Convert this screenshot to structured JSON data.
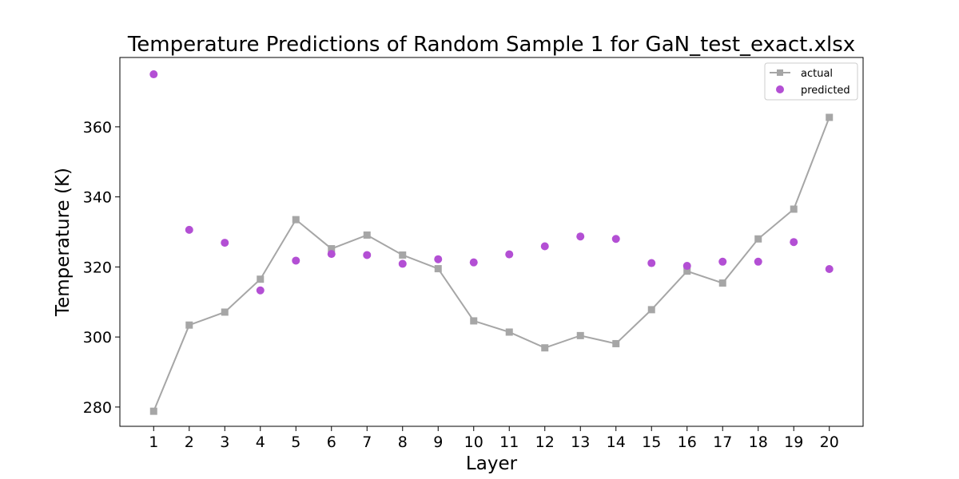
{
  "chart_data": {
    "type": "line",
    "title": "Temperature Predictions of Random Sample 1 for GaN_test_exact.xlsx",
    "xlabel": "Layer",
    "ylabel": "Temperature (K)",
    "x": [
      1,
      2,
      3,
      4,
      5,
      6,
      7,
      8,
      9,
      10,
      11,
      12,
      13,
      14,
      15,
      16,
      17,
      18,
      19,
      20
    ],
    "x_ticks": [
      "1",
      "2",
      "3",
      "4",
      "5",
      "6",
      "7",
      "8",
      "9",
      "10",
      "11",
      "12",
      "13",
      "14",
      "15",
      "16",
      "17",
      "18",
      "19",
      "20"
    ],
    "y_ticks": [
      "280",
      "300",
      "320",
      "340",
      "360"
    ],
    "xlim": [
      0.05,
      20.95
    ],
    "ylim": [
      274.5,
      379.8
    ],
    "grid": false,
    "legend_position": "top-right",
    "series": [
      {
        "name": "actual",
        "kind": "line-square",
        "color": "#a6a6a6",
        "values": [
          278.8,
          303.4,
          307.1,
          316.5,
          333.5,
          325.2,
          329.1,
          323.4,
          319.5,
          304.6,
          301.4,
          296.9,
          300.4,
          298.1,
          307.8,
          318.8,
          315.4,
          328.0,
          336.5,
          362.7
        ]
      },
      {
        "name": "predicted",
        "kind": "scatter",
        "color": "#b34fd4",
        "values": [
          375.0,
          330.6,
          326.9,
          313.3,
          321.8,
          323.7,
          323.4,
          320.9,
          322.2,
          321.3,
          323.6,
          325.9,
          328.7,
          328.0,
          321.1,
          320.3,
          321.5,
          321.5,
          327.1,
          319.4
        ]
      }
    ]
  }
}
